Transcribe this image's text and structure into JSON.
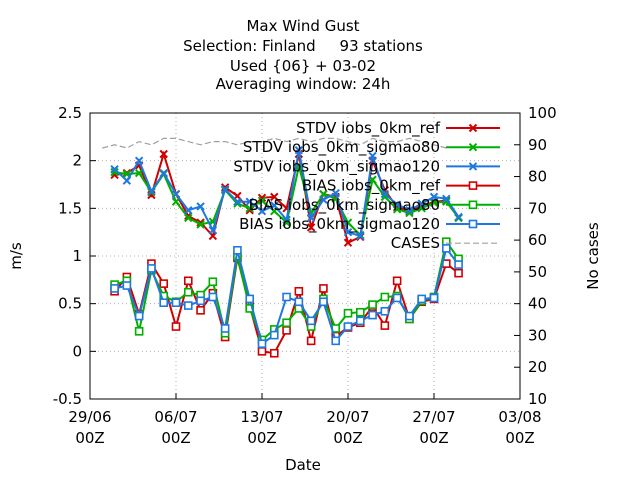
{
  "chart_data": {
    "type": "line",
    "title_lines": [
      "Max Wind Gust",
      "Selection: Finland     93 stations",
      "Used {06} + 03-02",
      "Averaging window: 24h"
    ],
    "xlabel": "Date",
    "ylabel": "m/s",
    "y2label": "No cases",
    "x_ticks": [
      {
        "day": 0,
        "line1": "29/06",
        "line2": "00Z"
      },
      {
        "day": 7,
        "line1": "06/07",
        "line2": "00Z"
      },
      {
        "day": 14,
        "line1": "13/07",
        "line2": "00Z"
      },
      {
        "day": 21,
        "line1": "20/07",
        "line2": "00Z"
      },
      {
        "day": 28,
        "line1": "27/07",
        "line2": "00Z"
      },
      {
        "day": 35,
        "line1": "03/08",
        "line2": "00Z"
      }
    ],
    "xlim": [
      0,
      35
    ],
    "ylim": [
      -0.5,
      2.5
    ],
    "y_ticks": [
      "-0.5",
      "0",
      "0.5",
      "1",
      "1.5",
      "2",
      "2.5"
    ],
    "y2lim": [
      10,
      100
    ],
    "y2_ticks": [
      "10",
      "20",
      "30",
      "40",
      "50",
      "60",
      "70",
      "80",
      "90",
      "100"
    ],
    "grid": true,
    "legend_position": "top-right",
    "x": [
      2,
      3,
      4,
      5,
      6,
      7,
      8,
      9,
      10,
      11,
      12,
      13,
      14,
      15,
      16,
      17,
      18,
      19,
      20,
      21,
      22,
      23,
      24,
      25,
      26,
      27,
      28,
      29,
      30
    ],
    "series": [
      {
        "name": "STDV iobs_0km_ref",
        "axis": "y1",
        "color": "#d00000",
        "marker": "x",
        "values": [
          1.85,
          1.87,
          1.95,
          1.64,
          2.07,
          1.65,
          1.42,
          1.35,
          1.21,
          1.72,
          1.63,
          1.48,
          1.61,
          1.62,
          1.5,
          2.07,
          1.3,
          1.65,
          1.62,
          1.14,
          1.2,
          2.0,
          1.69,
          1.51,
          1.47,
          1.52,
          1.57,
          1.58,
          1.4
        ]
      },
      {
        "name": "STDV iobs_0km_sigmao80",
        "axis": "y1",
        "color": "#00b000",
        "marker": "x",
        "values": [
          1.88,
          1.86,
          1.87,
          1.67,
          1.86,
          1.57,
          1.4,
          1.33,
          1.36,
          1.69,
          1.55,
          1.5,
          1.58,
          1.47,
          1.35,
          1.94,
          1.45,
          1.65,
          1.6,
          1.35,
          1.22,
          1.8,
          1.62,
          1.49,
          1.45,
          1.5,
          1.56,
          1.57,
          1.4
        ]
      },
      {
        "name": "STDV iobs_0km_sigmao120",
        "axis": "y1",
        "color": "#1e78e0",
        "marker": "x",
        "values": [
          1.91,
          1.79,
          2.0,
          1.68,
          1.87,
          1.65,
          1.48,
          1.52,
          1.27,
          1.7,
          1.57,
          1.57,
          1.47,
          1.53,
          1.38,
          2.11,
          1.4,
          1.59,
          1.66,
          1.25,
          1.21,
          2.05,
          1.65,
          1.54,
          1.48,
          1.55,
          1.62,
          1.6,
          1.41
        ]
      },
      {
        "name": "BIAS iobs_0km_ref",
        "axis": "y1",
        "color": "#d00000",
        "marker": "square",
        "values": [
          0.63,
          0.78,
          0.39,
          0.92,
          0.71,
          0.26,
          0.74,
          0.43,
          0.61,
          0.15,
          0.98,
          0.48,
          0.0,
          -0.02,
          0.22,
          0.63,
          0.11,
          0.66,
          0.16,
          0.25,
          0.3,
          0.47,
          0.27,
          0.74,
          0.34,
          0.52,
          0.55,
          0.92,
          0.82
        ]
      },
      {
        "name": "BIAS iobs_0km_sigmao80",
        "axis": "y1",
        "color": "#00b000",
        "marker": "square",
        "values": [
          0.7,
          0.74,
          0.21,
          0.85,
          0.58,
          0.52,
          0.62,
          0.59,
          0.73,
          0.19,
          1.0,
          0.45,
          0.12,
          0.23,
          0.3,
          0.45,
          0.26,
          0.55,
          0.24,
          0.4,
          0.41,
          0.49,
          0.57,
          0.58,
          0.34,
          0.53,
          0.57,
          1.15,
          0.97
        ]
      },
      {
        "name": "BIAS iobs_0km_sigmao120",
        "axis": "y1",
        "color": "#1e78e0",
        "marker": "square",
        "values": [
          0.66,
          0.69,
          0.37,
          0.87,
          0.51,
          0.51,
          0.48,
          0.53,
          0.57,
          0.24,
          1.06,
          0.55,
          0.08,
          0.17,
          0.57,
          0.52,
          0.32,
          0.52,
          0.11,
          0.26,
          0.32,
          0.38,
          0.42,
          0.56,
          0.37,
          0.55,
          0.56,
          1.08,
          0.91
        ]
      },
      {
        "name": "CASES",
        "axis": "y2",
        "color": "#a0a0a0",
        "marker": "none",
        "x": [
          1,
          2,
          3,
          4,
          5,
          6,
          7,
          8,
          9,
          10,
          11,
          12,
          13,
          14,
          15,
          16,
          17,
          18,
          19,
          20,
          21,
          22,
          23,
          24,
          25,
          26,
          27,
          28,
          29
        ],
        "values": [
          89,
          90,
          89,
          91,
          90,
          92,
          92,
          91,
          90,
          91,
          91,
          90,
          91,
          91,
          92,
          91,
          92,
          91,
          92,
          92,
          91,
          90,
          92,
          91,
          91,
          92,
          91,
          90,
          89
        ]
      }
    ]
  }
}
